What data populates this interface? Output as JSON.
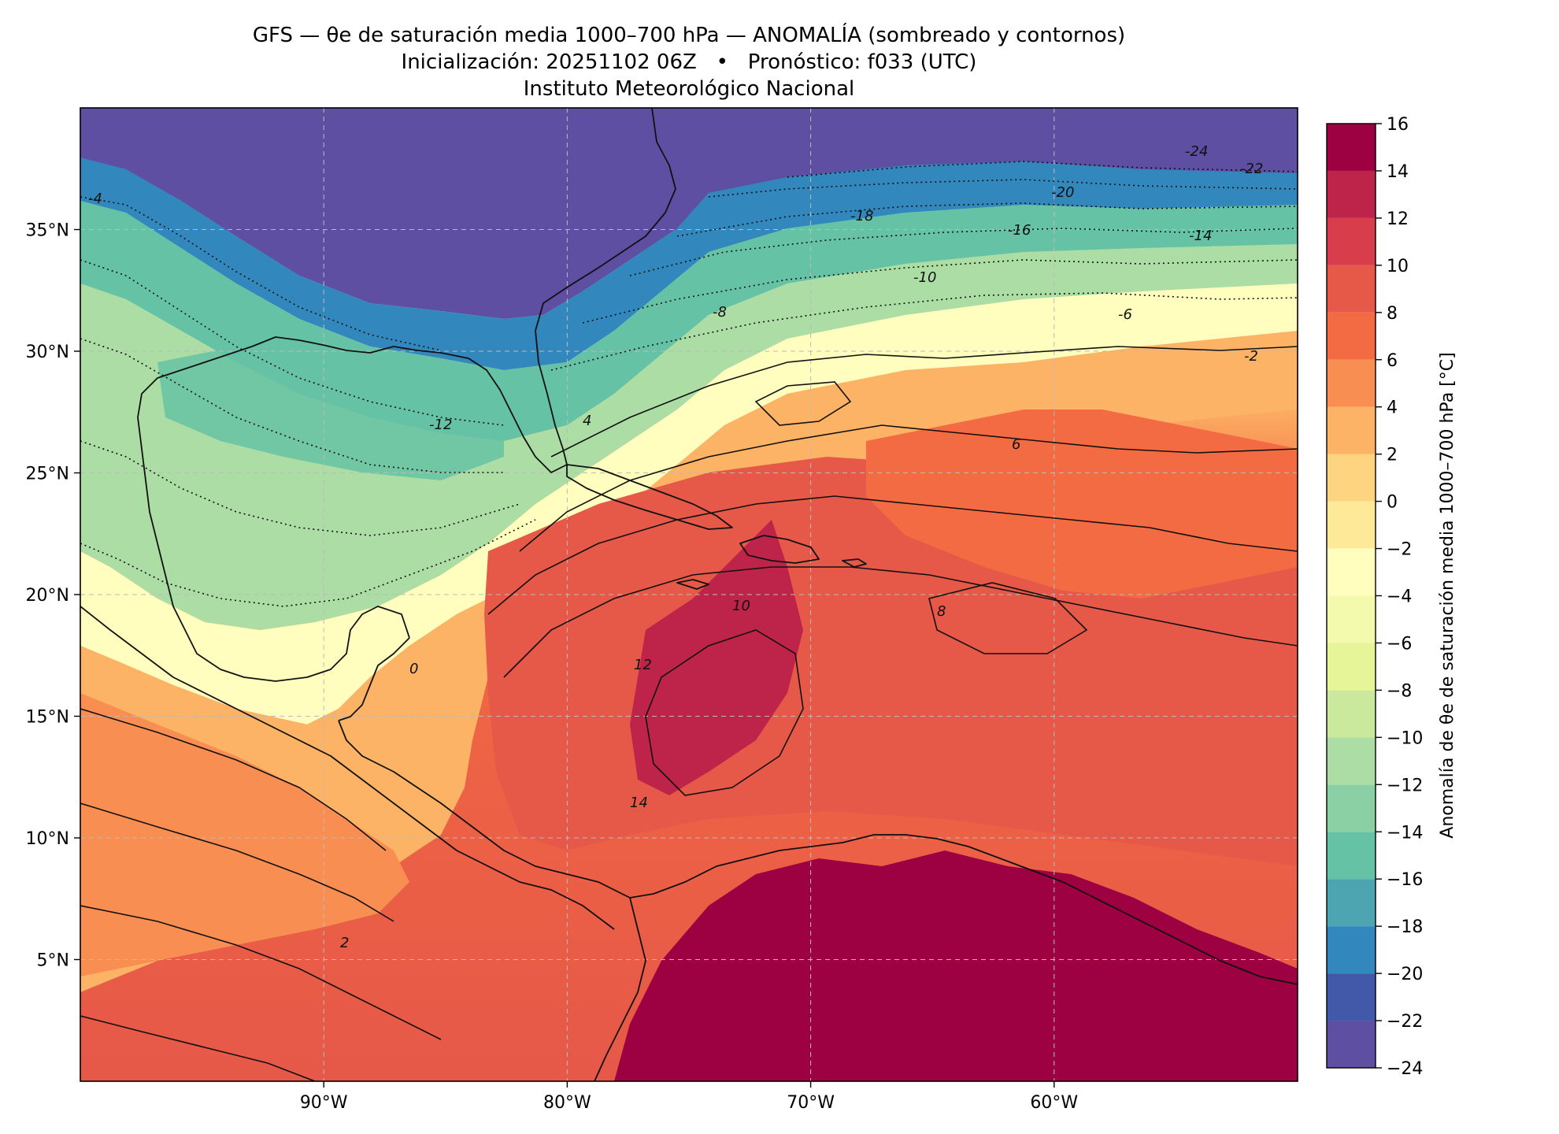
{
  "header": {
    "title": "GFS — θe de saturación media 1000–700 hPa — ANOMALÍA (sombreado y contornos)",
    "subtitle_init_label": "Inicialización: 20251102 06Z",
    "subtitle_separator": "•",
    "subtitle_forecast_label": "Pronóstico: f033 (UTC)",
    "institution": "Instituto Meteorológico Nacional"
  },
  "map": {
    "lon_range": [
      -100,
      -50
    ],
    "lat_range": [
      0,
      40
    ],
    "lon_ticks": [
      {
        "value": -90,
        "label": "90°W"
      },
      {
        "value": -80,
        "label": "80°W"
      },
      {
        "value": -70,
        "label": "70°W"
      },
      {
        "value": -60,
        "label": "60°W"
      }
    ],
    "lat_ticks": [
      {
        "value": 35,
        "label": "35°N"
      },
      {
        "value": 30,
        "label": "30°N"
      },
      {
        "value": 25,
        "label": "25°N"
      },
      {
        "value": 20,
        "label": "20°N"
      },
      {
        "value": 15,
        "label": "15°N"
      },
      {
        "value": 10,
        "label": "10°N"
      },
      {
        "value": 5,
        "label": "5°N"
      }
    ],
    "gridlines": "dashed",
    "contour_labels": [
      "-24",
      "-22",
      "-20",
      "-18",
      "-16",
      "-14",
      "-10",
      "-8",
      "-6",
      "-4",
      "-2",
      "-12",
      "4",
      "6",
      "8",
      "10",
      "12",
      "14",
      "0",
      "2"
    ]
  },
  "colorbar": {
    "label": "Anomalía de θe de saturación media 1000–700 hPa [°C]",
    "levels": [
      -24,
      -22,
      -20,
      -18,
      -16,
      -14,
      -12,
      -10,
      -8,
      -6,
      -4,
      -2,
      0,
      2,
      4,
      6,
      8,
      10,
      12,
      14,
      16
    ],
    "tick_labels": [
      "−24",
      "−22",
      "−20",
      "−18",
      "−16",
      "−14",
      "−12",
      "−10",
      "−8",
      "−6",
      "−4",
      "−2",
      "0",
      "2",
      "4",
      "6",
      "8",
      "10",
      "12",
      "14",
      "16"
    ],
    "colors": [
      "#5e4fa2",
      "#4259a9",
      "#3288bd",
      "#4ca5b1",
      "#66c2a5",
      "#8bd0a4",
      "#abdda4",
      "#cbe99d",
      "#e6f598",
      "#f3faad",
      "#fffebe",
      "#fee999",
      "#fed481",
      "#fdb365",
      "#f98e52",
      "#f36b43",
      "#e65848",
      "#d73d4a",
      "#be2449",
      "#9e0142"
    ]
  },
  "chart_data": {
    "type": "heatmap",
    "title": "GFS — θe de saturación media 1000–700 hPa — ANOMALÍA (sombreado y contornos)",
    "xlabel": "",
    "ylabel": "",
    "xlim": [
      -100,
      -50
    ],
    "ylim": [
      0,
      40
    ],
    "colorbar_label": "Anomalía de θe de saturación media 1000–700 hPa [°C]",
    "colorbar_range": [
      -24,
      16
    ]
  }
}
